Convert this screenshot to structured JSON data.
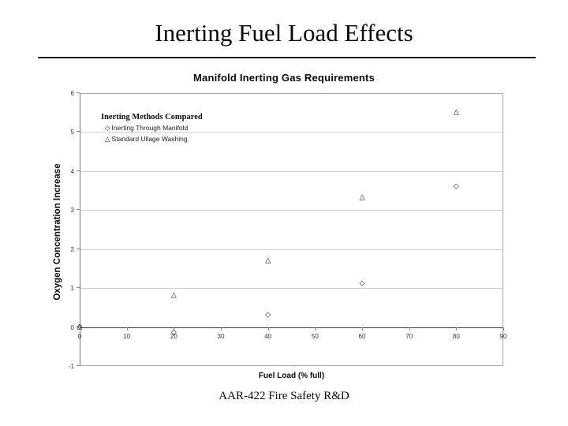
{
  "slide": {
    "title": "Inerting Fuel Load Effects",
    "footer": "AAR-422 Fire Safety R&D"
  },
  "chart_data": {
    "type": "scatter",
    "title": "Manifold Inerting Gas Requirements",
    "xlabel": "Fuel Load (% full)",
    "ylabel": "Oxygen Concentration Increase",
    "xlim": [
      0,
      90
    ],
    "ylim": [
      -1,
      6
    ],
    "x_ticks": [
      0,
      10,
      20,
      30,
      40,
      50,
      60,
      70,
      80,
      90
    ],
    "y_ticks": [
      -1,
      0,
      1,
      2,
      3,
      4,
      5,
      6
    ],
    "grid": "horizontal gridlines at each integer y value",
    "legend": {
      "title": "Inerting Methods Compared",
      "position": "inside top-left"
    },
    "series": [
      {
        "name": "Inerting Through Manifold",
        "marker": "open-diamond",
        "glyph": "◇",
        "points": [
          [
            0,
            0
          ],
          [
            20,
            -0.15
          ],
          [
            40,
            0.3
          ],
          [
            60,
            1.1
          ],
          [
            80,
            3.6
          ]
        ]
      },
      {
        "name": "Standard Ullage Washing",
        "marker": "open-triangle",
        "glyph": "△",
        "points": [
          [
            0,
            0
          ],
          [
            20,
            0.8
          ],
          [
            40,
            1.7
          ],
          [
            60,
            3.3
          ],
          [
            80,
            5.5
          ]
        ]
      }
    ]
  },
  "colors": {
    "background": "#ffffff",
    "text": "#0a0a0a",
    "gridline": "#d2d2d2",
    "plot_border": "#a8a8a8",
    "marker": "#000000"
  }
}
